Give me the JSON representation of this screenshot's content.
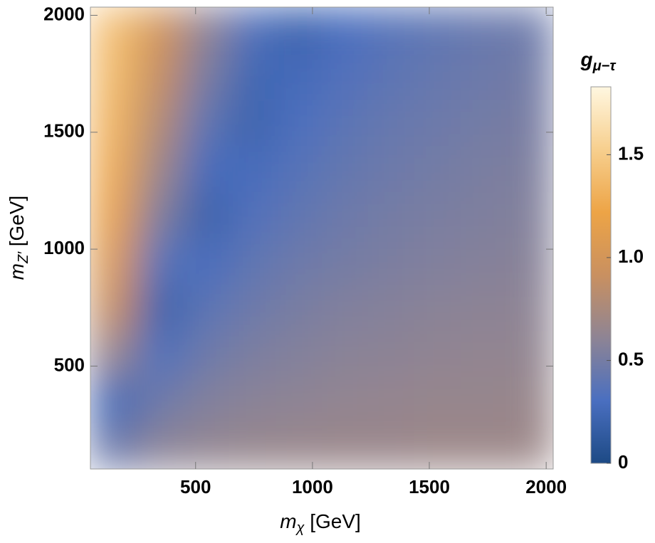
{
  "chart_data": {
    "type": "heatmap",
    "x_label": {
      "base": "m",
      "sub": "χ",
      "unit": "[GeV]"
    },
    "y_label": {
      "base": "m",
      "sub": "Z′",
      "unit": "[GeV]"
    },
    "x": [
      149,
      347,
      545,
      743,
      941,
      1139,
      1337,
      1535,
      1733,
      1931
    ],
    "y": [
      159,
      356,
      554,
      751,
      949,
      1146,
      1344,
      1541,
      1739,
      1936
    ],
    "values": [
      [
        0.45,
        0.59,
        0.63,
        0.65,
        0.66,
        0.67,
        0.67,
        0.68,
        0.68,
        0.68
      ],
      [
        0.26,
        0.46,
        0.55,
        0.59,
        0.61,
        0.63,
        0.64,
        0.65,
        0.65,
        0.66
      ],
      [
        0.65,
        0.33,
        0.46,
        0.53,
        0.56,
        0.59,
        0.6,
        0.62,
        0.63,
        0.63
      ],
      [
        0.91,
        0.2,
        0.38,
        0.46,
        0.51,
        0.55,
        0.57,
        0.59,
        0.6,
        0.61
      ],
      [
        1.07,
        0.37,
        0.29,
        0.4,
        0.46,
        0.5,
        0.53,
        0.55,
        0.57,
        0.58
      ],
      [
        1.19,
        0.54,
        0.2,
        0.34,
        0.41,
        0.46,
        0.5,
        0.52,
        0.54,
        0.56
      ],
      [
        1.27,
        0.68,
        0.28,
        0.28,
        0.36,
        0.42,
        0.46,
        0.49,
        0.52,
        0.54
      ],
      [
        1.33,
        0.8,
        0.4,
        0.21,
        0.32,
        0.38,
        0.43,
        0.46,
        0.49,
        0.51
      ],
      [
        1.38,
        0.9,
        0.51,
        0.24,
        0.27,
        0.34,
        0.39,
        0.43,
        0.46,
        0.49
      ],
      [
        1.42,
        0.98,
        0.61,
        0.33,
        0.21,
        0.3,
        0.36,
        0.4,
        0.44,
        0.46
      ]
    ],
    "xlim": [
      50,
      2030
    ],
    "ylim": [
      60,
      2035
    ],
    "xticks": [
      500,
      1000,
      1500,
      2000
    ],
    "yticks": [
      500,
      1000,
      1500,
      2000
    ],
    "colorbar": {
      "label": {
        "base": "g",
        "sub": "μ−τ"
      },
      "lim": [
        0,
        1.83
      ],
      "ticks": [
        0,
        0.5,
        {
          "value": 1,
          "label": "1.0"
        },
        1.5
      ]
    },
    "colormap": [
      "#1d4a85",
      "#4a6fc0",
      "#8e8494",
      "#c99060",
      "#eda446",
      "#f7cf8e",
      "#fff7e0"
    ]
  }
}
